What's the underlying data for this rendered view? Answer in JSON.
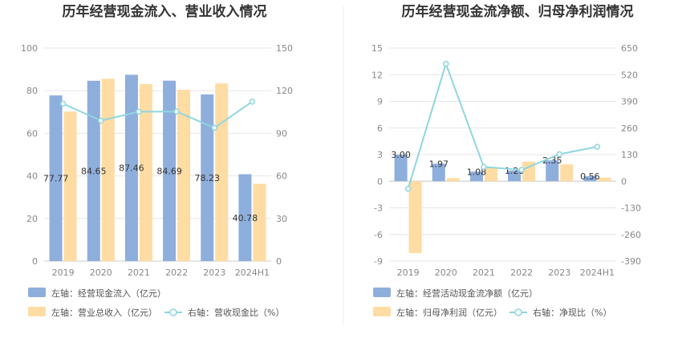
{
  "colors": {
    "bar_primary": "#8EAEDC",
    "bar_secondary": "#FFDCA3",
    "line": "#8FD6DE",
    "grid": "#E6E6E6",
    "divider": "#EEEEEE"
  },
  "chart_data": [
    {
      "type": "bar",
      "title": "历年经营现金流入、营业收入情况",
      "categories": [
        "2019",
        "2020",
        "2021",
        "2022",
        "2023",
        "2024H1"
      ],
      "y_left": {
        "min": 0,
        "max": 100,
        "ticks": [
          0,
          20,
          40,
          60,
          80,
          100
        ]
      },
      "y_right": {
        "min": 0,
        "max": 150,
        "ticks": [
          0,
          30,
          60,
          90,
          120,
          150
        ]
      },
      "series": [
        {
          "name": "左轴：经营现金流入（亿元）",
          "kind": "bar",
          "axis": "left",
          "values": [
            77.77,
            84.65,
            87.46,
            84.69,
            78.23,
            40.78
          ],
          "labels": [
            "77.77",
            "84.65",
            "87.46",
            "84.69",
            "78.23",
            "40.78"
          ]
        },
        {
          "name": "左轴：营业总收入（亿元）",
          "kind": "bar",
          "axis": "left",
          "values": [
            70.2,
            85.6,
            83.1,
            80.4,
            83.4,
            36.3
          ]
        },
        {
          "name": "右轴：营收现金比（%）",
          "kind": "line",
          "axis": "right",
          "values": [
            110.8,
            98.9,
            105.2,
            105.3,
            93.8,
            112.3
          ]
        }
      ],
      "legend": "bottom",
      "grid": true
    },
    {
      "type": "bar",
      "title": "历年经营现金流净额、归母净利润情况",
      "categories": [
        "2019",
        "2020",
        "2021",
        "2022",
        "2023",
        "2024H1"
      ],
      "y_left": {
        "min": -9,
        "max": 15,
        "ticks": [
          -9,
          -6,
          -3,
          0,
          3,
          6,
          9,
          12,
          15
        ]
      },
      "y_right": {
        "min": -390,
        "max": 650,
        "ticks": [
          -390,
          -260,
          -130,
          0,
          130,
          260,
          390,
          520,
          650
        ]
      },
      "series": [
        {
          "name": "左轴：经营活动现金流净额（亿元）",
          "kind": "bar",
          "axis": "left",
          "values": [
            3.0,
            1.97,
            1.08,
            1.2,
            2.35,
            0.56
          ],
          "labels": [
            "3.00",
            "1.97",
            "1.08",
            "1.20",
            "2.35",
            "0.56"
          ]
        },
        {
          "name": "左轴：归母净利润（亿元）",
          "kind": "bar",
          "axis": "left",
          "values": [
            -8.1,
            0.35,
            1.55,
            2.2,
            1.9,
            0.4
          ]
        },
        {
          "name": "右轴：净现比（%）",
          "kind": "line",
          "axis": "right",
          "values": [
            -37,
            573,
            70,
            55,
            132,
            168
          ]
        }
      ],
      "legend": "bottom",
      "grid": true
    }
  ]
}
